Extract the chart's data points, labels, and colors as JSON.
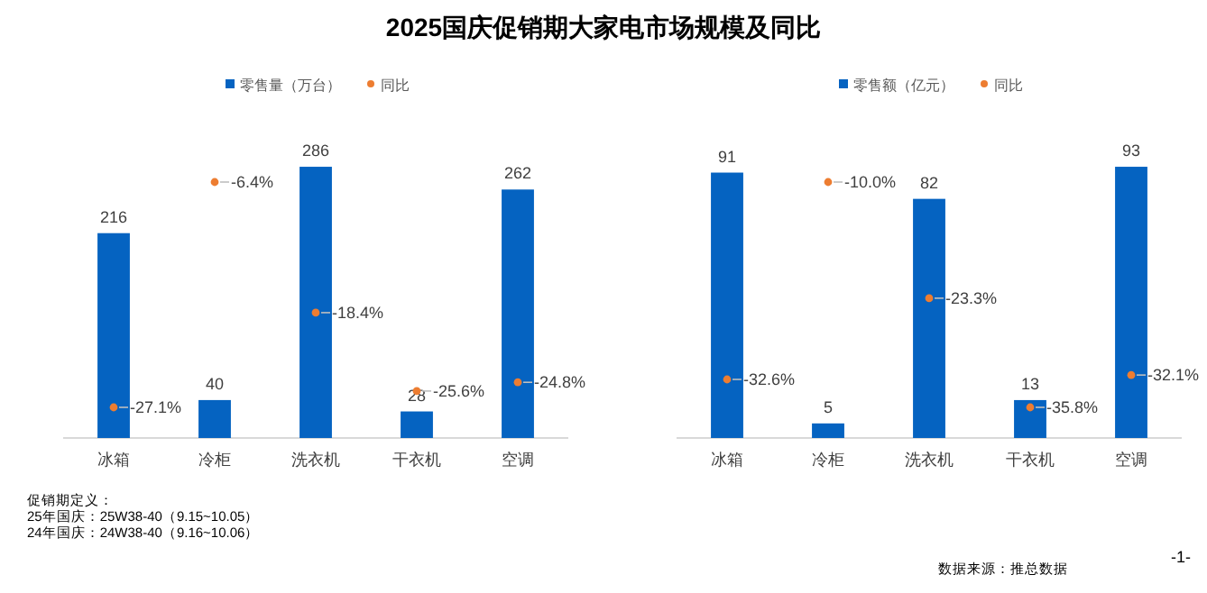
{
  "chart_data": [
    {
      "type": "bar",
      "title": "2025国庆促销期大家电市场规模及同比",
      "categories": [
        "冰箱",
        "冷柜",
        "洗衣机",
        "干衣机",
        "空调"
      ],
      "legend": "top",
      "series": [
        {
          "name": "零售量（万台）",
          "color": "#0563c1",
          "values": [
            216,
            40,
            286,
            28,
            262
          ],
          "value_labels": [
            "216",
            "40",
            "286",
            "28",
            "262"
          ]
        },
        {
          "name": "同比",
          "type": "scatter",
          "axis": "y2",
          "color": "#ed7d31",
          "values": [
            -27.1,
            -6.4,
            -18.4,
            -25.6,
            -24.8
          ],
          "value_labels": [
            "-27.1%",
            "-6.4%",
            "-18.4%",
            "-25.6%",
            "-24.8%"
          ]
        }
      ],
      "annotations": [
        "促销期定义：",
        "25年国庆：25W38-40（9.15~10.05）",
        "24年国庆：24W38-40（9.16~10.06）"
      ]
    },
    {
      "type": "bar",
      "categories": [
        "冰箱",
        "冷柜",
        "洗衣机",
        "干衣机",
        "空调"
      ],
      "legend": "top",
      "series": [
        {
          "name": "零售额（亿元）",
          "color": "#0563c1",
          "values": [
            91,
            5,
            82,
            13,
            93
          ],
          "value_labels": [
            "91",
            "5",
            "82",
            "13",
            "93"
          ]
        },
        {
          "name": "同比",
          "type": "scatter",
          "axis": "y2",
          "color": "#ed7d31",
          "values": [
            -32.6,
            -10.0,
            -23.3,
            -35.8,
            -32.1
          ],
          "value_labels": [
            "-32.6%",
            "-10.0%",
            "-23.3%",
            "-35.8%",
            "-32.1%"
          ]
        }
      ],
      "annotations": [
        "数据来源：推总数据",
        "-1-"
      ]
    }
  ]
}
